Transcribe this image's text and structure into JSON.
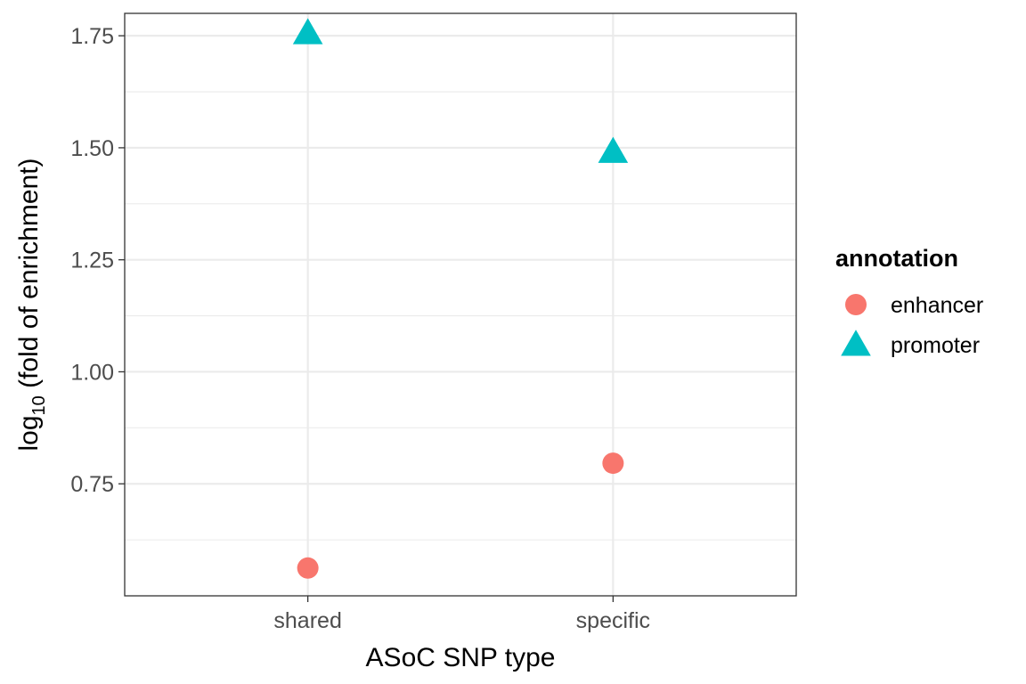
{
  "chart_data": {
    "type": "scatter",
    "categories": [
      "shared",
      "specific"
    ],
    "series": [
      {
        "name": "enhancer",
        "shape": "circle",
        "color": "#F8766D",
        "values": [
          0.562,
          0.796
        ]
      },
      {
        "name": "promoter",
        "shape": "triangle",
        "color": "#00BFC4",
        "values": [
          1.756,
          1.491
        ]
      }
    ],
    "xlabel": "ASoC SNP type",
    "ylabel": {
      "prefix": "log",
      "subscript": "10",
      "suffix": " (fold of enrichment)"
    },
    "ylim": [
      0.5,
      1.8
    ],
    "yticks": [
      0.75,
      1.0,
      1.25,
      1.5,
      1.75
    ],
    "yticklabels": [
      "0.75",
      "1.00",
      "1.25",
      "1.50",
      "1.75"
    ],
    "grid": true,
    "legend": {
      "title": "annotation",
      "placement": "right"
    }
  }
}
